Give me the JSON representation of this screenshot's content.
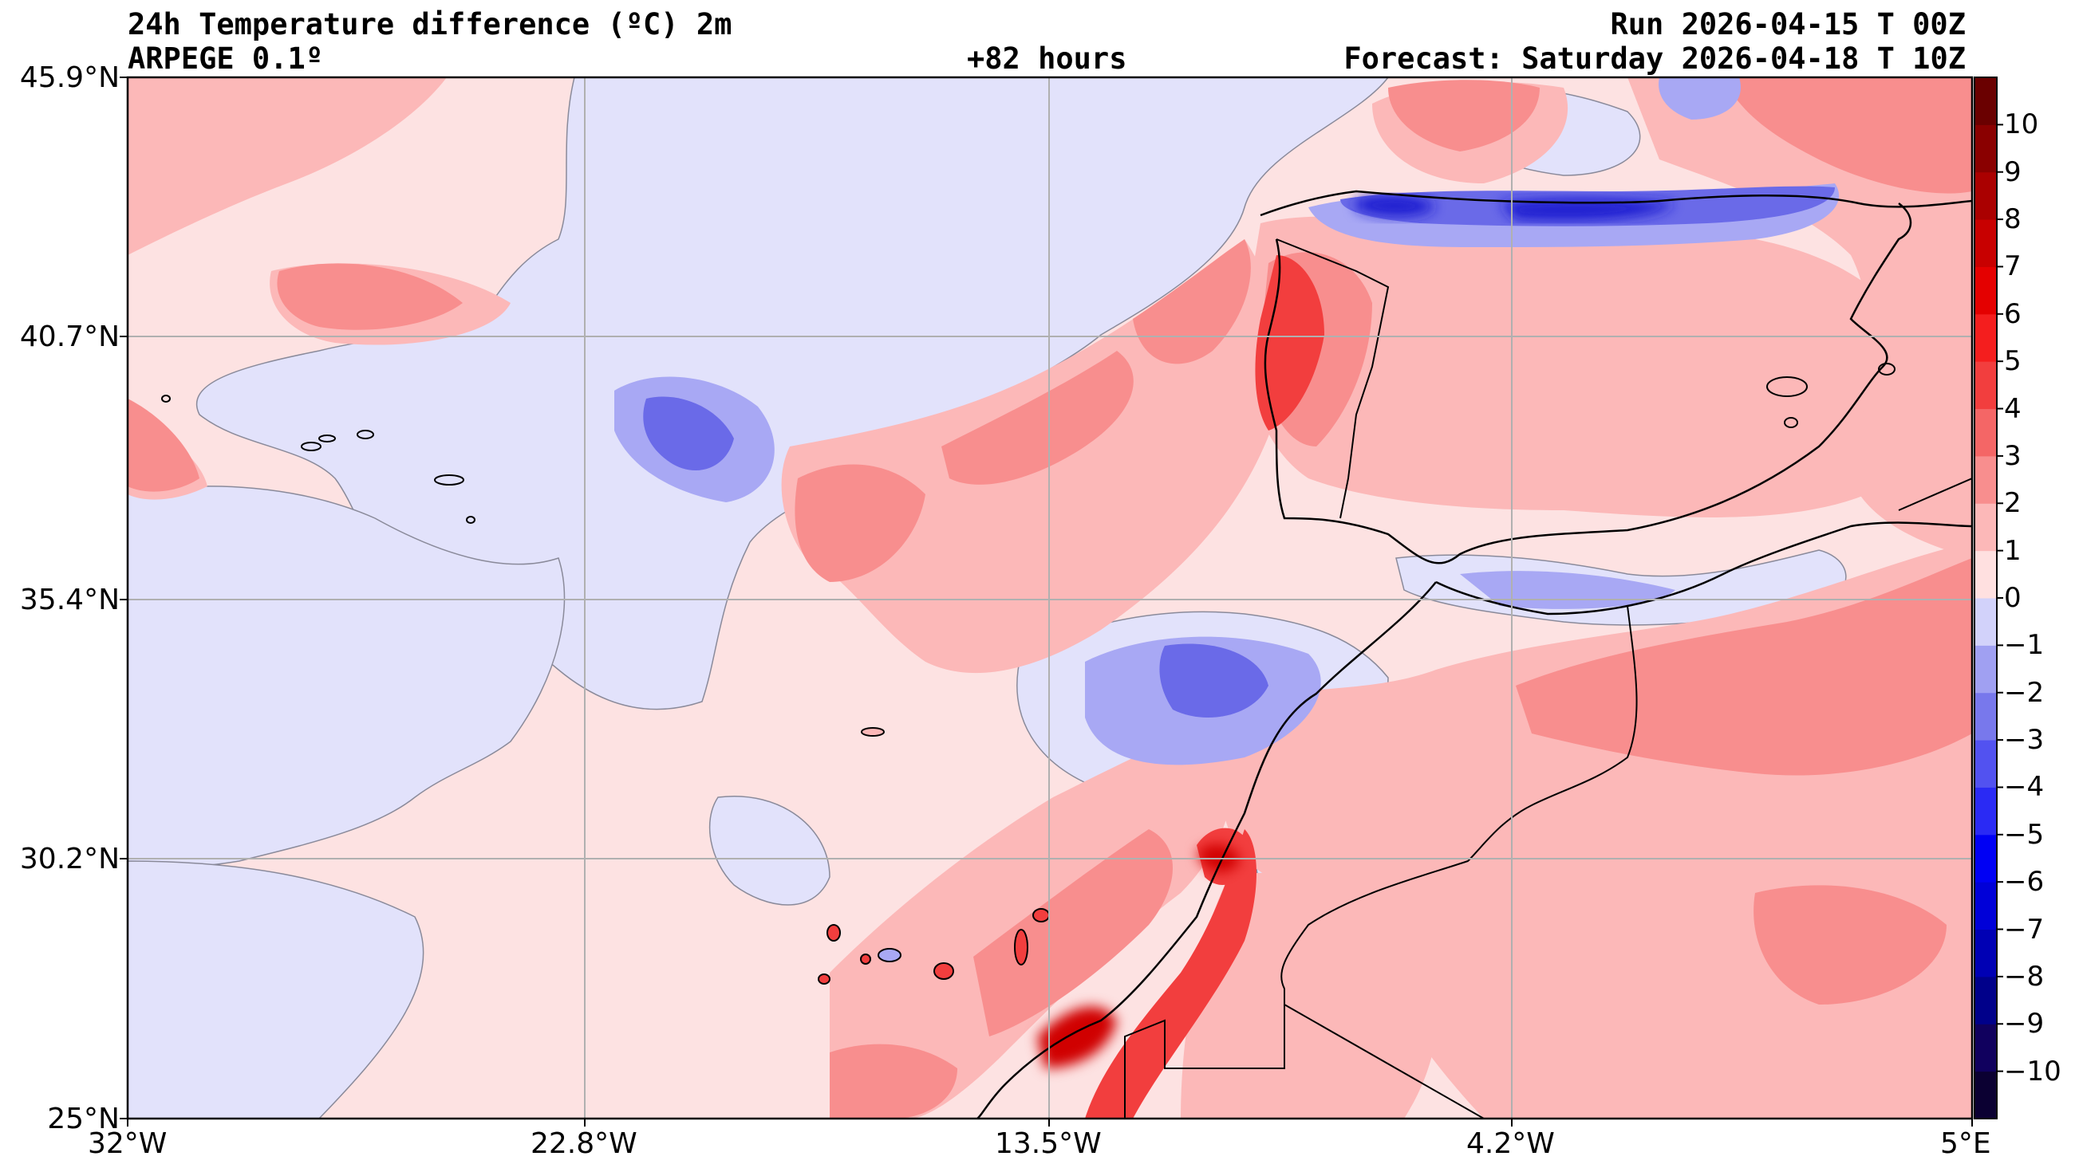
{
  "header": {
    "title": "24h Temperature difference (ºC) 2m",
    "model": "ARPEGE 0.1º",
    "lead": "+82 hours",
    "run": "Run 2026-04-15 T 00Z",
    "forecast": "Forecast: Saturday 2026-04-18 T 10Z"
  },
  "axes": {
    "lat_labels": [
      "45.9°N",
      "40.7°N",
      "35.4°N",
      "30.2°N",
      "25°N"
    ],
    "lon_labels": [
      "32°W",
      "22.8°W",
      "13.5°W",
      "4.2°W",
      "5°E"
    ]
  },
  "colorbar": {
    "labels": [
      "10",
      "9",
      "8",
      "7",
      "6",
      "5",
      "4",
      "3",
      "2",
      "1",
      "0",
      "−1",
      "−2",
      "−3",
      "−4",
      "−5",
      "−6",
      "−7",
      "−8",
      "−9",
      "−10"
    ],
    "colors": [
      "#0b0032",
      "#10005e",
      "#00008a",
      "#0000b4",
      "#0000d8",
      "#0000f4",
      "#2a2af4",
      "#5252f0",
      "#7878ec",
      "#a0a0f2",
      "#d2d2fa",
      "#ffe0e0",
      "#fcb8b8",
      "#f88e8e",
      "#f46666",
      "#f23e3e",
      "#f41e1e",
      "#e40000",
      "#c80000",
      "#aa0000",
      "#8a0000",
      "#6a0000"
    ]
  }
}
